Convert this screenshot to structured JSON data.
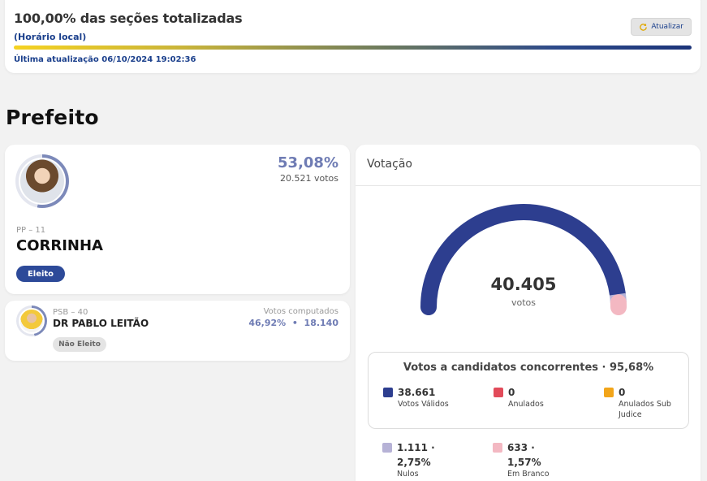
{
  "status": {
    "title": "100,00% das seções totalizadas",
    "local_time": "(Horário local)",
    "refresh_label": "Atualizar",
    "last_update": "Última atualização 06/10/2024 19:02:36",
    "progress_percent": 100
  },
  "section_title": "Prefeito",
  "winner": {
    "percent": "53,08%",
    "votes": "20.521 votos",
    "party": "PP – 11",
    "name": "CORRINHA",
    "status": "Eleito"
  },
  "runner_up": {
    "party": "PSB – 40",
    "name": "DR PABLO LEITÃO",
    "status": "Não Eleito",
    "computed_label": "Votos computados",
    "computed_value": "46,92%  •  18.140"
  },
  "votacao": {
    "header": "Votação",
    "total": "40.405",
    "total_label": "votos",
    "gauge": {
      "valid_fraction": 0.9568,
      "null_fraction": 0.0275,
      "blank_fraction": 0.0157
    },
    "valid_box_title": "Votos a candidatos concorrentes · 95,68%",
    "stats": [
      {
        "value": "38.661",
        "label": "Votos Válidos",
        "color": "#2d3e8f"
      },
      {
        "value": "0",
        "label": "Anulados",
        "color": "#e24b5a"
      },
      {
        "value": "0",
        "label": "Anulados Sub Judice",
        "color": "#f2a51a"
      }
    ],
    "other_stats": [
      {
        "value_line1": "1.111 ·",
        "value_line2": "2,75%",
        "label": "Nulos",
        "color": "#b6b2d6"
      },
      {
        "value_line1": "633 ·",
        "value_line2": "1,57%",
        "label": "Em Branco",
        "color": "#f3b8c2"
      }
    ]
  }
}
